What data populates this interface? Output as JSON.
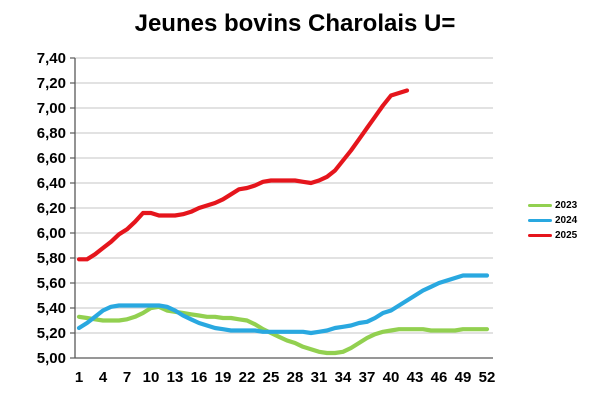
{
  "title": "Jeunes bovins Charolais U=",
  "colors": {
    "series_2023": "#92D050",
    "series_2024": "#29A8E0",
    "series_2025": "#E5151C",
    "gridline": "#D9D9D9",
    "axis": "#595959",
    "text": "#000000"
  },
  "chart_data": {
    "type": "line",
    "title": "Jeunes bovins Charolais U=",
    "xlabel": "",
    "ylabel": "",
    "xlim": [
      1,
      52
    ],
    "ylim": [
      5.0,
      7.4
    ],
    "y_step": 0.2,
    "grid": true,
    "legend_position": "right",
    "x_tick_labels": [
      "1",
      "4",
      "7",
      "10",
      "13",
      "16",
      "19",
      "22",
      "25",
      "28",
      "31",
      "34",
      "37",
      "40",
      "43",
      "46",
      "49",
      "52"
    ],
    "y_tick_labels": [
      "5,00",
      "5,20",
      "5,40",
      "5,60",
      "5,80",
      "6,00",
      "6,20",
      "6,40",
      "6,60",
      "6,80",
      "7,00",
      "7,20",
      "7,40"
    ],
    "x_unit": "week",
    "series": [
      {
        "name": "2023",
        "color": "#92D050",
        "start_week": 1,
        "values": [
          5.33,
          5.32,
          5.31,
          5.3,
          5.3,
          5.3,
          5.31,
          5.33,
          5.36,
          5.4,
          5.41,
          5.38,
          5.37,
          5.36,
          5.35,
          5.34,
          5.33,
          5.33,
          5.32,
          5.32,
          5.31,
          5.3,
          5.27,
          5.23,
          5.2,
          5.17,
          5.14,
          5.12,
          5.09,
          5.07,
          5.05,
          5.04,
          5.04,
          5.05,
          5.08,
          5.12,
          5.16,
          5.19,
          5.21,
          5.22,
          5.23,
          5.23,
          5.23,
          5.23,
          5.22,
          5.22,
          5.22,
          5.22,
          5.23,
          5.23,
          5.23,
          5.23
        ]
      },
      {
        "name": "2024",
        "color": "#29A8E0",
        "start_week": 1,
        "values": [
          5.24,
          5.28,
          5.33,
          5.38,
          5.41,
          5.42,
          5.42,
          5.42,
          5.42,
          5.42,
          5.42,
          5.41,
          5.38,
          5.34,
          5.31,
          5.28,
          5.26,
          5.24,
          5.23,
          5.22,
          5.22,
          5.22,
          5.22,
          5.21,
          5.21,
          5.21,
          5.21,
          5.21,
          5.21,
          5.2,
          5.21,
          5.22,
          5.24,
          5.25,
          5.26,
          5.28,
          5.29,
          5.32,
          5.36,
          5.38,
          5.42,
          5.46,
          5.5,
          5.54,
          5.57,
          5.6,
          5.62,
          5.64,
          5.66,
          5.66,
          5.66,
          5.66
        ]
      },
      {
        "name": "2025",
        "color": "#E5151C",
        "start_week": 1,
        "values": [
          5.79,
          5.79,
          5.83,
          5.88,
          5.93,
          5.99,
          6.03,
          6.09,
          6.16,
          6.16,
          6.14,
          6.14,
          6.14,
          6.15,
          6.17,
          6.2,
          6.22,
          6.24,
          6.27,
          6.31,
          6.35,
          6.36,
          6.38,
          6.41,
          6.42,
          6.42,
          6.42,
          6.42,
          6.41,
          6.4,
          6.42,
          6.45,
          6.5,
          6.58,
          6.66,
          6.75,
          6.84,
          6.93,
          7.02,
          7.1,
          7.12,
          7.14
        ]
      }
    ]
  }
}
